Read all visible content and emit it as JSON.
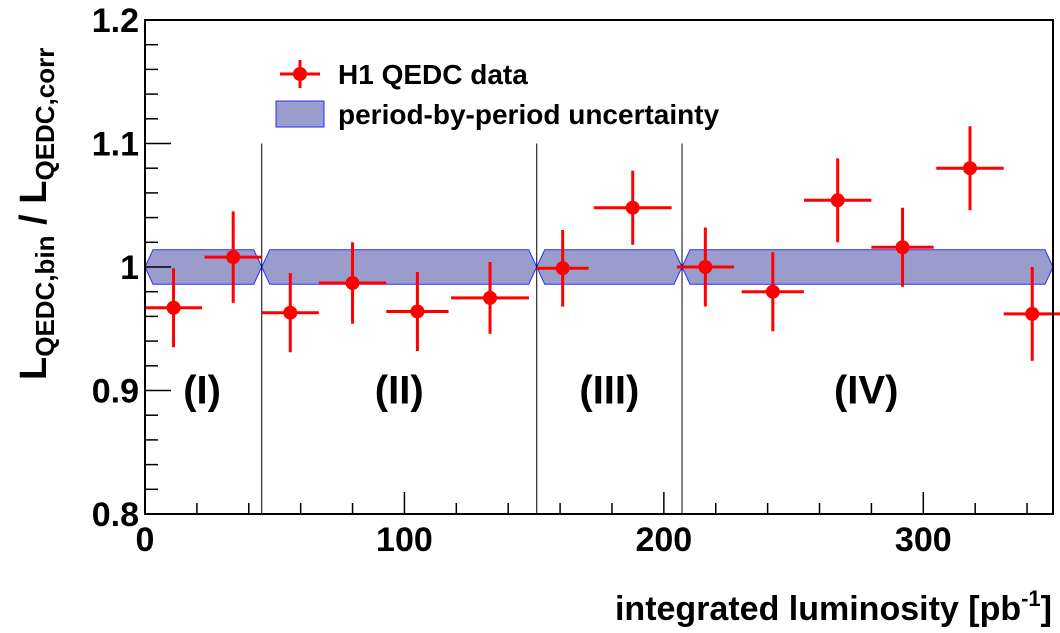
{
  "chart_data": {
    "type": "scatter",
    "xlabel": "integrated luminosity [pb",
    "xlabel_sup": "-1",
    "xlabel_close": "]",
    "ylabel": {
      "L1": "L",
      "sub1": "QEDC,bin",
      "slash": " / ",
      "L2": "L",
      "sub2": "QEDC,corr"
    },
    "xlim": [
      0,
      350
    ],
    "ylim": [
      0.8,
      1.2
    ],
    "x_ticks": [
      0,
      100,
      200,
      300
    ],
    "x_tick_labels": [
      "0",
      "100",
      "200",
      "300"
    ],
    "y_ticks": [
      0.8,
      0.9,
      1.0,
      1.1,
      1.2
    ],
    "y_tick_labels": [
      "0.8",
      "0.9",
      "1",
      "1.1",
      "1.2"
    ],
    "grid": false,
    "legend": {
      "placement": "top-left",
      "entries": [
        "H1 QEDC data",
        "period-by-period uncertainty"
      ]
    },
    "colors": {
      "data": "#ff0000",
      "band_fill": "#9a9ccc",
      "band_edge": "#2b2bff"
    },
    "period_boundaries": [
      45,
      151,
      207
    ],
    "periods": [
      {
        "label": "(I)",
        "x_start": 0,
        "x_end": 45,
        "label_x": 22
      },
      {
        "label": "(II)",
        "x_start": 45,
        "x_end": 151,
        "label_x": 98
      },
      {
        "label": "(III)",
        "x_start": 151,
        "x_end": 207,
        "label_x": 179
      },
      {
        "label": "(IV)",
        "x_start": 207,
        "x_end": 350,
        "label_x": 278
      }
    ],
    "band": {
      "center": 1.0,
      "half_width": 0.014
    },
    "series": [
      {
        "name": "H1 QEDC data",
        "points": [
          {
            "x": 11,
            "y": 0.967,
            "xerr": 11,
            "yerr": 0.032
          },
          {
            "x": 34,
            "y": 1.008,
            "xerr": 11,
            "yerr": 0.037
          },
          {
            "x": 56,
            "y": 0.963,
            "xerr": 11,
            "yerr": 0.032
          },
          {
            "x": 80,
            "y": 0.987,
            "xerr": 13,
            "yerr": 0.033
          },
          {
            "x": 105,
            "y": 0.964,
            "xerr": 12,
            "yerr": 0.032
          },
          {
            "x": 133,
            "y": 0.975,
            "xerr": 15,
            "yerr": 0.029
          },
          {
            "x": 161,
            "y": 0.999,
            "xerr": 10,
            "yerr": 0.031
          },
          {
            "x": 188,
            "y": 1.048,
            "xerr": 15,
            "yerr": 0.03
          },
          {
            "x": 216,
            "y": 1.0,
            "xerr": 11,
            "yerr": 0.032
          },
          {
            "x": 242,
            "y": 0.98,
            "xerr": 12,
            "yerr": 0.032
          },
          {
            "x": 267,
            "y": 1.054,
            "xerr": 13,
            "yerr": 0.034
          },
          {
            "x": 292,
            "y": 1.016,
            "xerr": 12,
            "yerr": 0.032
          },
          {
            "x": 318,
            "y": 1.08,
            "xerr": 13,
            "yerr": 0.034
          },
          {
            "x": 342,
            "y": 0.962,
            "xerr": 11,
            "yerr": 0.038
          }
        ]
      }
    ]
  }
}
